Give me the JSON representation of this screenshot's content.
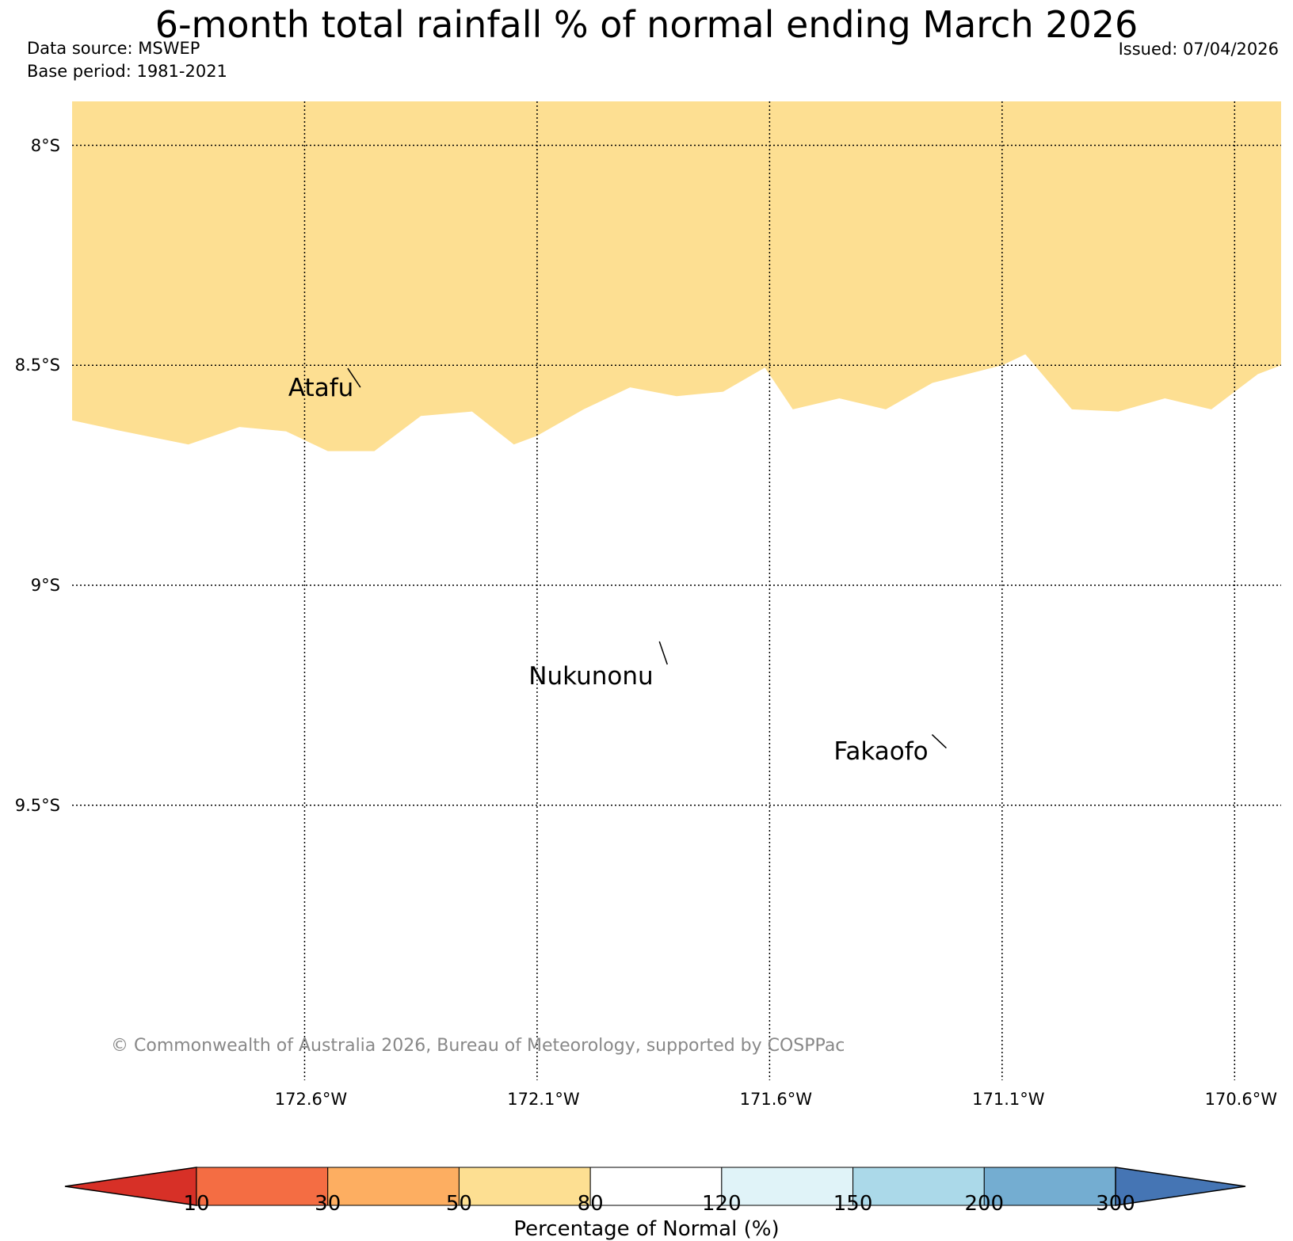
{
  "header": {
    "title": "6-month total rainfall % of normal ending March 2026",
    "data_source": "Data source: MSWEP",
    "base_period": "Base period: 1981-2021",
    "issued": "Issued: 07/04/2026"
  },
  "map": {
    "lat_labels": [
      "8°S",
      "8.5°S",
      "9°S",
      "9.5°S"
    ],
    "lon_labels": [
      "172.6°W",
      "172.1°W",
      "171.6°W",
      "171.1°W",
      "170.6°W"
    ],
    "places": [
      {
        "name": "Atafu",
        "lat": -8.55,
        "lon": -172.48
      },
      {
        "name": "Nukunonu",
        "lat": -9.18,
        "lon": -171.82
      },
      {
        "name": "Fakaofo",
        "lat": -9.37,
        "lon": -171.22
      }
    ],
    "shaded_region": {
      "category": "50-80",
      "color": "#fddf92",
      "boundary": [
        [
          -173.1,
          -8.625
        ],
        [
          -173.0,
          -8.648
        ],
        [
          -172.85,
          -8.68
        ],
        [
          -172.74,
          -8.64
        ],
        [
          -172.64,
          -8.65
        ],
        [
          -172.55,
          -8.695
        ],
        [
          -172.45,
          -8.695
        ],
        [
          -172.35,
          -8.615
        ],
        [
          -172.24,
          -8.605
        ],
        [
          -172.15,
          -8.68
        ],
        [
          -172.1,
          -8.66
        ],
        [
          -172.0,
          -8.6
        ],
        [
          -171.9,
          -8.55
        ],
        [
          -171.8,
          -8.57
        ],
        [
          -171.7,
          -8.56
        ],
        [
          -171.61,
          -8.505
        ],
        [
          -171.55,
          -8.6
        ],
        [
          -171.45,
          -8.575
        ],
        [
          -171.35,
          -8.6
        ],
        [
          -171.25,
          -8.54
        ],
        [
          -171.1,
          -8.5
        ],
        [
          -171.05,
          -8.475
        ],
        [
          -170.95,
          -8.6
        ],
        [
          -170.85,
          -8.605
        ],
        [
          -170.75,
          -8.575
        ],
        [
          -170.65,
          -8.6
        ],
        [
          -170.55,
          -8.52
        ],
        [
          -170.5,
          -8.5
        ]
      ]
    },
    "copyright": "© Commonwealth of Australia 2026, Bureau of Meteorology, supported by COSPPac"
  },
  "colorbar": {
    "label": "Percentage of Normal (%)",
    "ticks": [
      "10",
      "30",
      "50",
      "80",
      "120",
      "150",
      "200",
      "300"
    ],
    "colors": [
      "#d73027",
      "#f46d43",
      "#fdae61",
      "#fddf92",
      "#ffffff",
      "#e0f3f8",
      "#abd9e9",
      "#74add1",
      "#4575b4"
    ]
  }
}
